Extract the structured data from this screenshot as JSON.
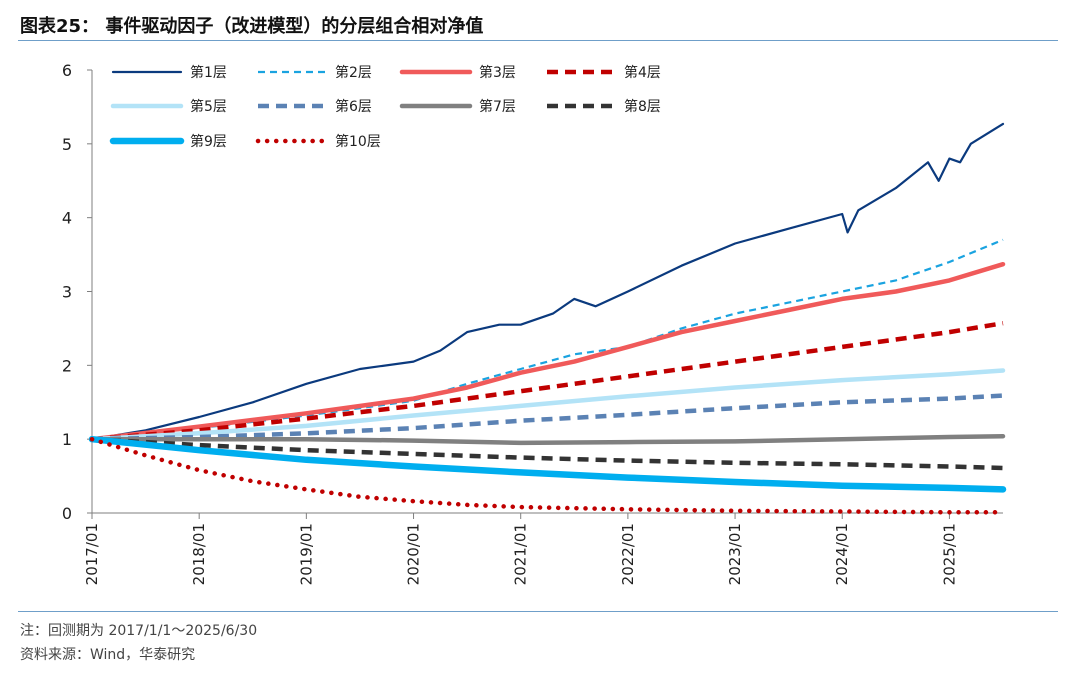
{
  "header": {
    "title": "图表25：  事件驱动因子（改进模型）的分层组合相对净值"
  },
  "footer": {
    "note": "注：回测期为 2017/1/1～2025/6/30",
    "source": "资料来源：Wind，华泰研究"
  },
  "chart_data": {
    "type": "line",
    "title": "事件驱动因子（改进模型）的分层组合相对净值",
    "xlabel": "",
    "ylabel": "",
    "ylim": [
      0,
      6
    ],
    "yticks": [
      0,
      1,
      2,
      3,
      4,
      5,
      6
    ],
    "xticks": [
      "2017/01",
      "2018/01",
      "2019/01",
      "2020/01",
      "2021/01",
      "2022/01",
      "2023/01",
      "2024/01",
      "2025/01"
    ],
    "xrange": [
      2017.0,
      2025.5
    ],
    "grid": false,
    "legend_position": "top-left",
    "series": [
      {
        "name": "第1层",
        "color": "#0b3a7e",
        "style": "solid-thin",
        "points": [
          [
            2017.0,
            1.0
          ],
          [
            2017.5,
            1.12
          ],
          [
            2018.0,
            1.3
          ],
          [
            2018.5,
            1.5
          ],
          [
            2019.0,
            1.75
          ],
          [
            2019.5,
            1.95
          ],
          [
            2020.0,
            2.05
          ],
          [
            2020.25,
            2.2
          ],
          [
            2020.5,
            2.45
          ],
          [
            2020.8,
            2.55
          ],
          [
            2021.0,
            2.55
          ],
          [
            2021.3,
            2.7
          ],
          [
            2021.5,
            2.9
          ],
          [
            2021.7,
            2.8
          ],
          [
            2022.0,
            3.0
          ],
          [
            2022.5,
            3.35
          ],
          [
            2023.0,
            3.65
          ],
          [
            2023.5,
            3.85
          ],
          [
            2024.0,
            4.05
          ],
          [
            2024.05,
            3.8
          ],
          [
            2024.15,
            4.1
          ],
          [
            2024.5,
            4.4
          ],
          [
            2024.8,
            4.75
          ],
          [
            2024.9,
            4.5
          ],
          [
            2025.0,
            4.8
          ],
          [
            2025.1,
            4.75
          ],
          [
            2025.2,
            5.0
          ],
          [
            2025.5,
            5.27
          ]
        ]
      },
      {
        "name": "第2层",
        "color": "#1aa3e0",
        "style": "dashed",
        "points": [
          [
            2017.0,
            1.0
          ],
          [
            2018.0,
            1.15
          ],
          [
            2019.0,
            1.32
          ],
          [
            2020.0,
            1.52
          ],
          [
            2020.5,
            1.75
          ],
          [
            2021.0,
            1.95
          ],
          [
            2021.5,
            2.15
          ],
          [
            2022.0,
            2.25
          ],
          [
            2022.5,
            2.5
          ],
          [
            2023.0,
            2.7
          ],
          [
            2023.5,
            2.85
          ],
          [
            2024.0,
            3.0
          ],
          [
            2024.5,
            3.15
          ],
          [
            2025.0,
            3.4
          ],
          [
            2025.5,
            3.7
          ]
        ]
      },
      {
        "name": "第3层",
        "color": "#f05a5a",
        "style": "solid-thick",
        "points": [
          [
            2017.0,
            1.0
          ],
          [
            2018.0,
            1.17
          ],
          [
            2019.0,
            1.35
          ],
          [
            2020.0,
            1.55
          ],
          [
            2020.5,
            1.7
          ],
          [
            2021.0,
            1.9
          ],
          [
            2021.5,
            2.05
          ],
          [
            2022.0,
            2.25
          ],
          [
            2022.5,
            2.45
          ],
          [
            2023.0,
            2.6
          ],
          [
            2023.5,
            2.75
          ],
          [
            2024.0,
            2.9
          ],
          [
            2024.5,
            3.0
          ],
          [
            2025.0,
            3.15
          ],
          [
            2025.5,
            3.37
          ]
        ]
      },
      {
        "name": "第4层",
        "color": "#c00000",
        "style": "dashed-thick",
        "points": [
          [
            2017.0,
            1.0
          ],
          [
            2018.0,
            1.12
          ],
          [
            2019.0,
            1.28
          ],
          [
            2020.0,
            1.45
          ],
          [
            2021.0,
            1.65
          ],
          [
            2021.5,
            1.75
          ],
          [
            2022.0,
            1.85
          ],
          [
            2022.5,
            1.95
          ],
          [
            2023.0,
            2.05
          ],
          [
            2023.5,
            2.15
          ],
          [
            2024.0,
            2.25
          ],
          [
            2024.5,
            2.35
          ],
          [
            2025.0,
            2.45
          ],
          [
            2025.5,
            2.57
          ]
        ]
      },
      {
        "name": "第5层",
        "color": "#b3e3f7",
        "style": "solid-thick",
        "points": [
          [
            2017.0,
            1.0
          ],
          [
            2018.0,
            1.08
          ],
          [
            2019.0,
            1.18
          ],
          [
            2020.0,
            1.32
          ],
          [
            2021.0,
            1.45
          ],
          [
            2022.0,
            1.58
          ],
          [
            2023.0,
            1.7
          ],
          [
            2024.0,
            1.8
          ],
          [
            2025.0,
            1.88
          ],
          [
            2025.5,
            1.93
          ]
        ]
      },
      {
        "name": "第6层",
        "color": "#5b82b4",
        "style": "dashed-thick",
        "points": [
          [
            2017.0,
            1.0
          ],
          [
            2018.0,
            1.03
          ],
          [
            2019.0,
            1.08
          ],
          [
            2020.0,
            1.15
          ],
          [
            2021.0,
            1.25
          ],
          [
            2022.0,
            1.33
          ],
          [
            2023.0,
            1.42
          ],
          [
            2024.0,
            1.5
          ],
          [
            2025.0,
            1.55
          ],
          [
            2025.5,
            1.59
          ]
        ]
      },
      {
        "name": "第7层",
        "color": "#808080",
        "style": "solid-thick",
        "points": [
          [
            2017.0,
            1.0
          ],
          [
            2018.0,
            1.0
          ],
          [
            2019.0,
            1.0
          ],
          [
            2020.0,
            0.98
          ],
          [
            2021.0,
            0.95
          ],
          [
            2022.0,
            0.96
          ],
          [
            2023.0,
            0.97
          ],
          [
            2024.0,
            1.0
          ],
          [
            2025.0,
            1.03
          ],
          [
            2025.5,
            1.04
          ]
        ]
      },
      {
        "name": "第8层",
        "color": "#333333",
        "style": "dashed-thick",
        "points": [
          [
            2017.0,
            1.0
          ],
          [
            2018.0,
            0.92
          ],
          [
            2019.0,
            0.85
          ],
          [
            2020.0,
            0.8
          ],
          [
            2021.0,
            0.75
          ],
          [
            2022.0,
            0.71
          ],
          [
            2023.0,
            0.68
          ],
          [
            2024.0,
            0.66
          ],
          [
            2025.0,
            0.63
          ],
          [
            2025.5,
            0.61
          ]
        ]
      },
      {
        "name": "第9层",
        "color": "#00aeef",
        "style": "solid-xthick",
        "points": [
          [
            2017.0,
            1.0
          ],
          [
            2018.0,
            0.85
          ],
          [
            2019.0,
            0.72
          ],
          [
            2020.0,
            0.63
          ],
          [
            2021.0,
            0.55
          ],
          [
            2022.0,
            0.48
          ],
          [
            2023.0,
            0.42
          ],
          [
            2024.0,
            0.37
          ],
          [
            2025.0,
            0.34
          ],
          [
            2025.5,
            0.32
          ]
        ]
      },
      {
        "name": "第10层",
        "color": "#c00000",
        "style": "dotted",
        "points": [
          [
            2017.0,
            1.0
          ],
          [
            2017.5,
            0.78
          ],
          [
            2018.0,
            0.58
          ],
          [
            2018.5,
            0.43
          ],
          [
            2019.0,
            0.32
          ],
          [
            2019.5,
            0.22
          ],
          [
            2020.0,
            0.16
          ],
          [
            2020.5,
            0.11
          ],
          [
            2021.0,
            0.08
          ],
          [
            2022.0,
            0.05
          ],
          [
            2023.0,
            0.03
          ],
          [
            2024.0,
            0.02
          ],
          [
            2025.0,
            0.01
          ],
          [
            2025.5,
            0.01
          ]
        ]
      }
    ]
  }
}
